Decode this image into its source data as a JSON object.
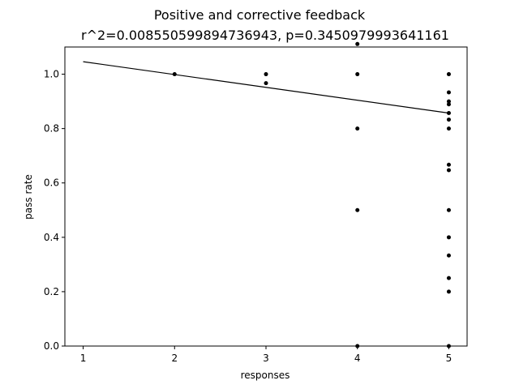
{
  "chart_data": {
    "type": "scatter",
    "title": "Positive and corrective feedback",
    "subtitle": "r^2=0.008550599894736943, p=0.3450979993641161",
    "xlabel": "responses",
    "ylabel": "pass rate",
    "xlim": [
      0.8,
      5.2
    ],
    "ylim": [
      0.0,
      1.1
    ],
    "xticks": [
      1,
      2,
      3,
      4,
      5
    ],
    "yticks": [
      0.0,
      0.2,
      0.4,
      0.6,
      0.8,
      1.0
    ],
    "grid": false,
    "legend": "none",
    "colors": {
      "points": "#000000",
      "fit_line": "#000000",
      "axes": "#000000",
      "background": "#ffffff"
    },
    "series": [
      {
        "points": [
          [
            2,
            1.0
          ],
          [
            3,
            1.0
          ],
          [
            3,
            0.967
          ],
          [
            4,
            1.111
          ],
          [
            4,
            1.0
          ],
          [
            4,
            0.8
          ],
          [
            4,
            0.5
          ],
          [
            4,
            0.0
          ],
          [
            5,
            1.0
          ],
          [
            5,
            0.933
          ],
          [
            5,
            0.9
          ],
          [
            5,
            0.889
          ],
          [
            5,
            0.857
          ],
          [
            5,
            0.833
          ],
          [
            5,
            0.8
          ],
          [
            5,
            0.667
          ],
          [
            5,
            0.647
          ],
          [
            5,
            0.5
          ],
          [
            5,
            0.4
          ],
          [
            5,
            0.333
          ],
          [
            5,
            0.25
          ],
          [
            5,
            0.2
          ],
          [
            5,
            0.0
          ]
        ]
      }
    ],
    "fit_line": {
      "x": [
        1,
        5
      ],
      "y": [
        1.046,
        0.857
      ]
    }
  }
}
